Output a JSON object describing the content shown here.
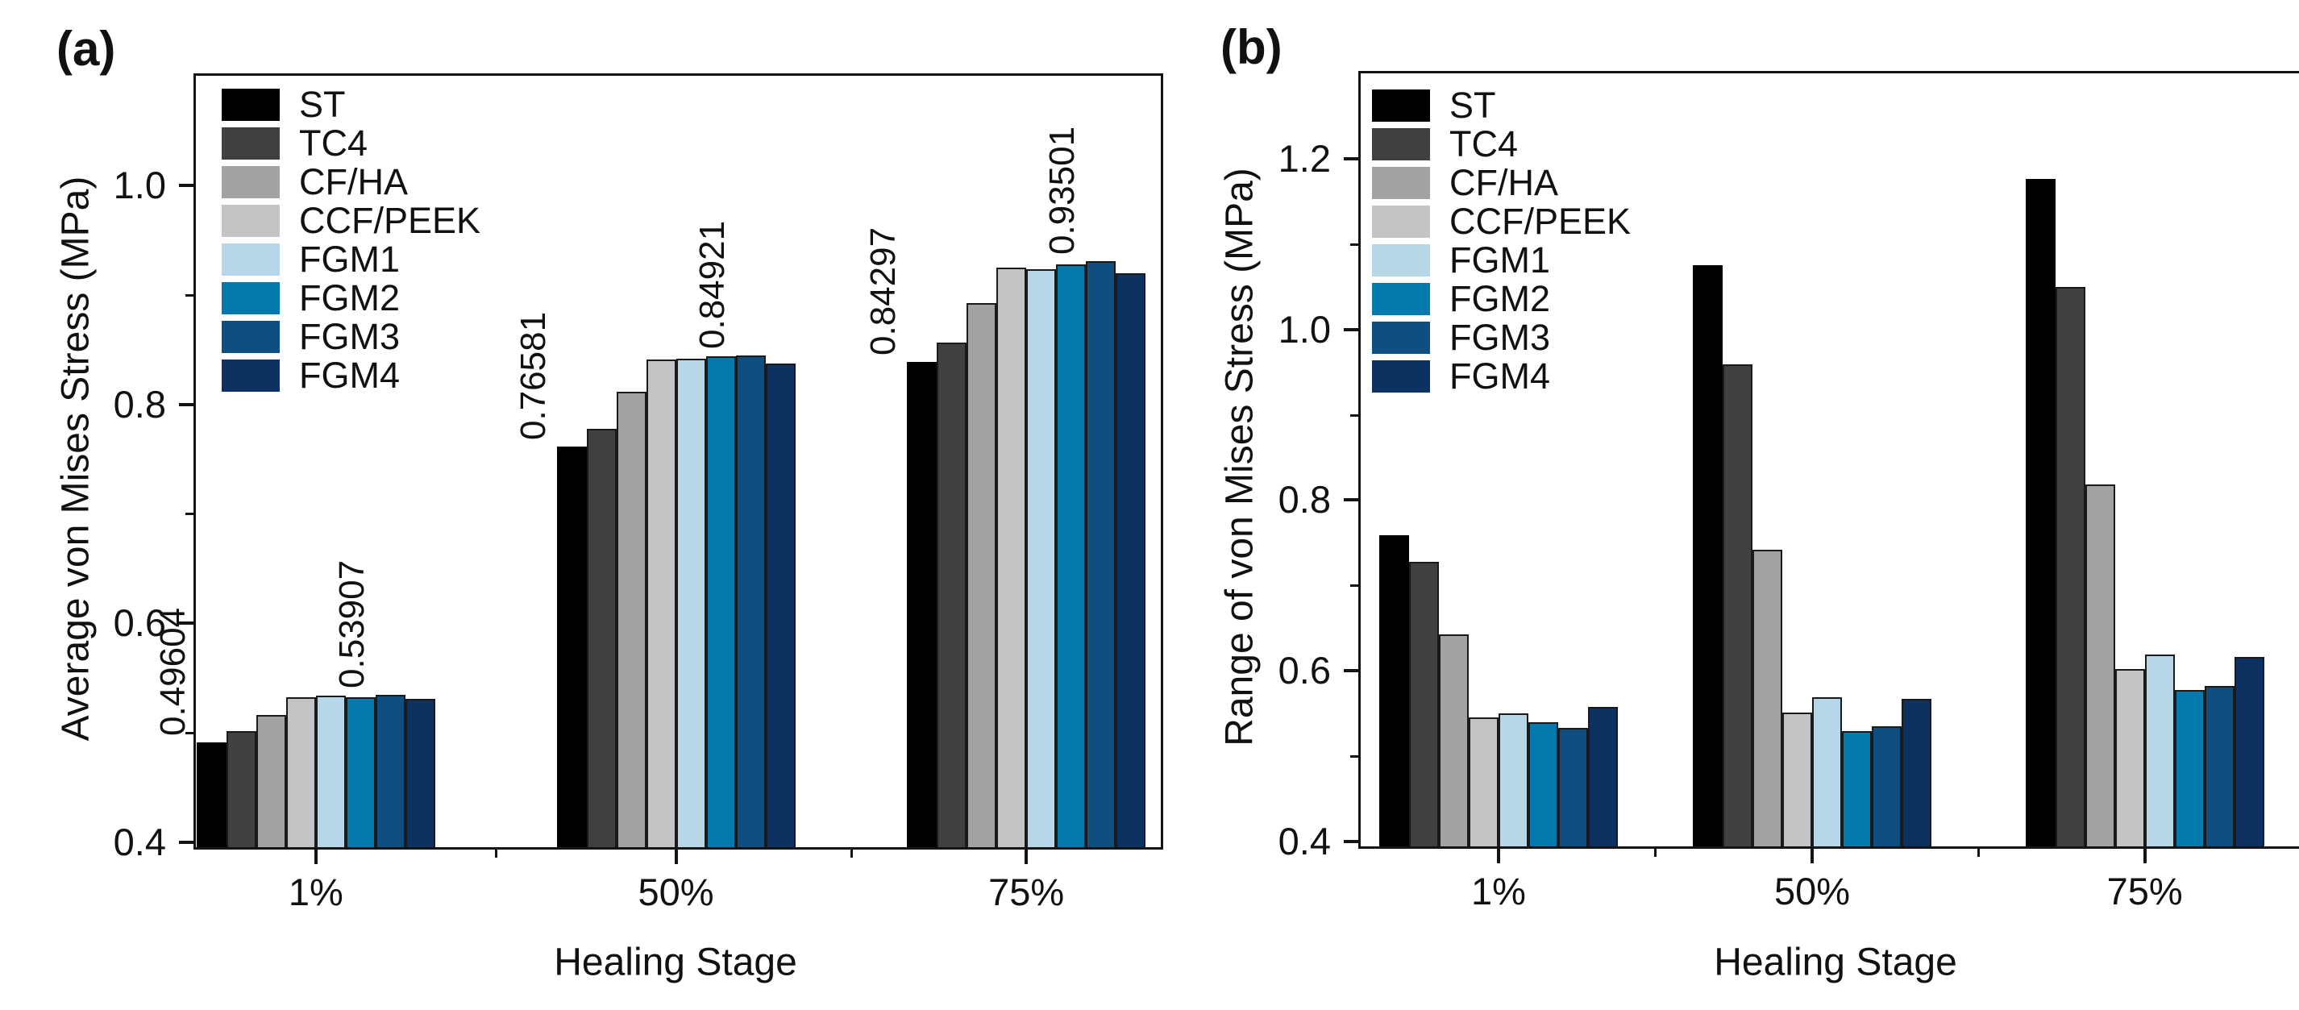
{
  "chart_data": [
    {
      "type": "bar",
      "title": "(a)",
      "ylabel": "Average von Mises Stress (MPa)",
      "xlabel": "Healing Stage",
      "categories": [
        "1%",
        "50%",
        "75%"
      ],
      "ylim": [
        0.4,
        1.1
      ],
      "yticks": [
        0.4,
        0.6,
        0.8,
        1.0
      ],
      "ytick_labels": [
        "0.4",
        "0.6",
        "0.8",
        "1.0"
      ],
      "minor_yticks": [
        0.5,
        0.7,
        0.9
      ],
      "grid": false,
      "legend_position": "top-left",
      "series": [
        {
          "name": "ST",
          "color": "#000000",
          "values": [
            0.49604,
            0.76581,
            0.84297
          ]
        },
        {
          "name": "TC4",
          "color": "#404040",
          "values": [
            0.506,
            0.782,
            0.861
          ]
        },
        {
          "name": "CF/HA",
          "color": "#a3a3a3",
          "values": [
            0.521,
            0.816,
            0.897
          ]
        },
        {
          "name": "CCF/PEEK",
          "color": "#c4c4c6",
          "values": [
            0.537,
            0.845,
            0.929
          ]
        },
        {
          "name": "FGM1",
          "color": "#b7d7e9",
          "values": [
            0.5385,
            0.846,
            0.928
          ]
        },
        {
          "name": "FGM2",
          "color": "#0379ad",
          "values": [
            0.537,
            0.848,
            0.932
          ]
        },
        {
          "name": "FGM3",
          "color": "#114e80",
          "values": [
            0.53907,
            0.84921,
            0.93501
          ]
        },
        {
          "name": "FGM4",
          "color": "#0d3161",
          "values": [
            0.5355,
            0.842,
            0.924
          ]
        }
      ],
      "value_labels": {
        "ST": [
          "0.49604",
          "0.76581",
          "0.84297"
        ],
        "FGM3": [
          "0.53907",
          "0.84921",
          "0.93501"
        ]
      }
    },
    {
      "type": "bar",
      "title": "(b)",
      "ylabel": "Range of von Mises Stress (MPa)",
      "xlabel": "Healing Stage",
      "categories": [
        "1%",
        "50%",
        "75%"
      ],
      "ylim": [
        0.4,
        1.3
      ],
      "yticks": [
        0.4,
        0.6,
        0.8,
        1.0,
        1.2
      ],
      "ytick_labels": [
        "0.4",
        "0.6",
        "0.8",
        "1.0",
        "1.2"
      ],
      "minor_yticks": [
        0.5,
        0.7,
        0.9,
        1.1
      ],
      "grid": false,
      "legend_position": "top-left",
      "series": [
        {
          "name": "ST",
          "color": "#000000",
          "values": [
            0.765,
            1.081,
            1.182
          ]
        },
        {
          "name": "TC4",
          "color": "#404040",
          "values": [
            0.733,
            0.965,
            1.055
          ]
        },
        {
          "name": "CF/HA",
          "color": "#a3a3a3",
          "values": [
            0.648,
            0.748,
            0.824
          ]
        },
        {
          "name": "CCF/PEEK",
          "color": "#c4c4c6",
          "values": [
            0.551,
            0.557,
            0.608
          ]
        },
        {
          "name": "FGM1",
          "color": "#b7d7e9",
          "values": [
            0.556,
            0.575,
            0.625
          ]
        },
        {
          "name": "FGM2",
          "color": "#0379ad",
          "values": [
            0.545,
            0.535,
            0.583
          ]
        },
        {
          "name": "FGM3",
          "color": "#114e80",
          "values": [
            0.539,
            0.541,
            0.588
          ]
        },
        {
          "name": "FGM4",
          "color": "#0d3161",
          "values": [
            0.563,
            0.573,
            0.622
          ]
        }
      ],
      "value_labels": {}
    }
  ]
}
